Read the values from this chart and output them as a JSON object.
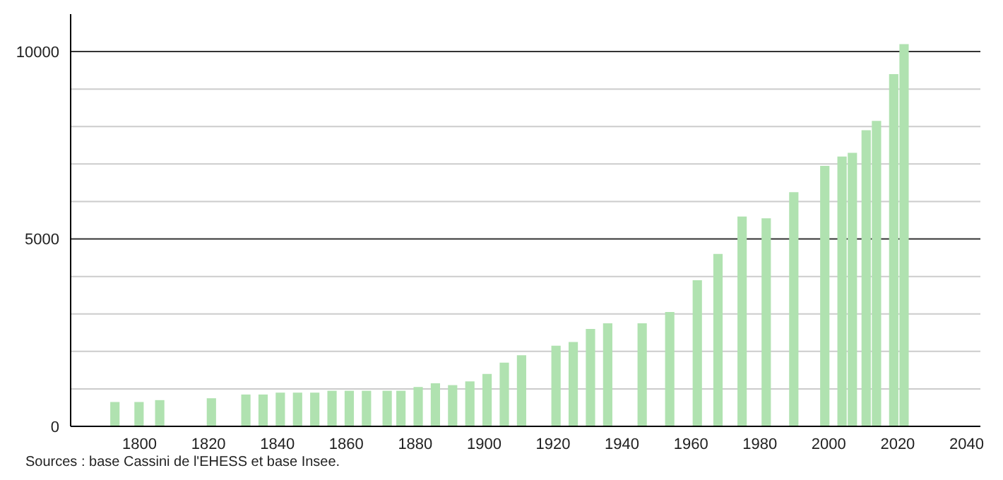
{
  "chart_data": {
    "type": "bar",
    "x": [
      1793,
      1800,
      1806,
      1821,
      1831,
      1836,
      1841,
      1846,
      1851,
      1856,
      1861,
      1866,
      1872,
      1876,
      1881,
      1886,
      1891,
      1896,
      1901,
      1906,
      1911,
      1921,
      1926,
      1931,
      1936,
      1946,
      1954,
      1962,
      1968,
      1975,
      1982,
      1990,
      1999,
      2004,
      2007,
      2011,
      2014,
      2019,
      2022
    ],
    "values": [
      650,
      650,
      700,
      750,
      850,
      850,
      900,
      900,
      900,
      950,
      950,
      950,
      950,
      950,
      1050,
      1150,
      1100,
      1200,
      1400,
      1700,
      1900,
      2150,
      2250,
      2600,
      2750,
      2750,
      3050,
      3900,
      4600,
      5600,
      5550,
      6250,
      6950,
      7200,
      7300,
      7900,
      8150,
      9400,
      10200
    ],
    "color": "#b0e2b0",
    "xlim": [
      1780,
      2044
    ],
    "xticks": [
      1800,
      1820,
      1840,
      1860,
      1880,
      1900,
      1920,
      1940,
      1960,
      1980,
      2000,
      2020,
      2040
    ],
    "ylim": [
      0,
      11000
    ],
    "yticks": [
      0,
      {
        "value": 1000,
        "label": null
      },
      {
        "value": 2000,
        "label": null
      },
      {
        "value": 3000,
        "label": null
      },
      {
        "value": 4000,
        "label": null
      },
      5000,
      {
        "value": 6000,
        "label": null
      },
      {
        "value": 7000,
        "label": null
      },
      {
        "value": 8000,
        "label": null
      },
      {
        "value": 9000,
        "label": null
      },
      10000
    ],
    "grid": "y",
    "annotations": [
      "Sources : base Cassini de l'EHESS et base Insee."
    ]
  }
}
